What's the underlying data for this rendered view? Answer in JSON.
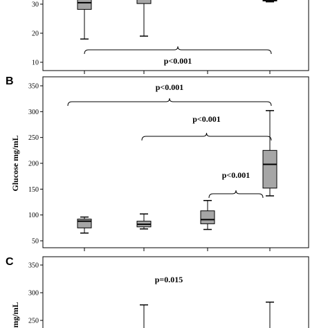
{
  "chart_data": [
    {
      "panel": "A",
      "type": "boxplot",
      "ylim": [
        10,
        34
      ],
      "yticks": [
        10,
        20,
        30
      ],
      "boxes": [
        {
          "min": 18,
          "q1": 28.2,
          "median": 30.5,
          "q3": 34,
          "max": 34
        },
        {
          "min": 19,
          "q1": 30.2,
          "median": 32,
          "q3": 34,
          "max": 34
        },
        null,
        {
          "min": 30.8,
          "q1": 31.1,
          "median": 31.3,
          "q3": 31.6,
          "max": 32
        }
      ],
      "annotations": [
        {
          "text": "p<0.001",
          "from": 1,
          "to": 4
        }
      ]
    },
    {
      "panel": "B",
      "type": "boxplot",
      "ylabel": "Glucose mg/mL",
      "ylim": [
        45,
        360
      ],
      "yticks": [
        50,
        100,
        150,
        200,
        250,
        300,
        350
      ],
      "boxes": [
        {
          "min": 65,
          "q1": 75,
          "median": 88,
          "q3": 92,
          "max": 96
        },
        {
          "min": 73,
          "q1": 77,
          "median": 82,
          "q3": 88,
          "max": 102
        },
        {
          "min": 72,
          "q1": 83,
          "median": 91,
          "q3": 108,
          "max": 128
        },
        {
          "min": 137,
          "q1": 152,
          "median": 198,
          "q3": 225,
          "max": 302
        }
      ],
      "annotations": [
        {
          "text": "p<0.001",
          "from": 1,
          "to": 4
        },
        {
          "text": "p<0.001",
          "from": 2,
          "to": 4
        },
        {
          "text": "p<0.001",
          "from": 3,
          "to": 4
        }
      ]
    },
    {
      "panel": "C",
      "type": "boxplot",
      "ylabel": "mg/mL",
      "ylim": [
        226,
        360
      ],
      "yticks": [
        250,
        300,
        350
      ],
      "boxes": [
        null,
        {
          "min": 226,
          "q1": 226,
          "median": 226,
          "q3": 226,
          "max": 278
        },
        null,
        {
          "min": 226,
          "q1": 226,
          "median": 226,
          "q3": 226,
          "max": 283
        }
      ],
      "annotations": [
        {
          "text": "p=0.015"
        }
      ]
    }
  ],
  "colors": {
    "box_fill": "#a6a6a6",
    "stroke": "#000000"
  }
}
